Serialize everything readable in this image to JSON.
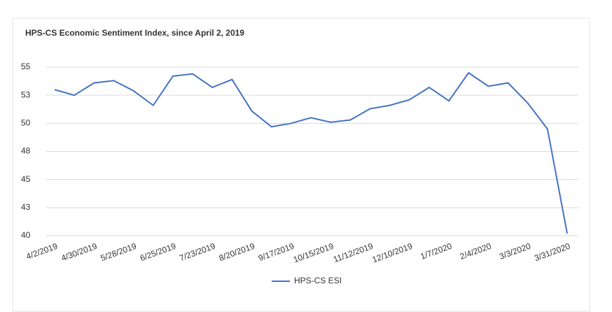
{
  "chart_data": {
    "type": "line",
    "title": "HPS-CS Economic Sentiment Index, since April 2, 2019",
    "categories": [
      "4/2/2019",
      null,
      "4/30/2019",
      null,
      "5/28/2019",
      null,
      "6/25/2019",
      null,
      "7/23/2019",
      null,
      "8/20/2019",
      null,
      "9/17/2019",
      null,
      "10/15/2019",
      null,
      "11/12/2019",
      null,
      "12/10/2019",
      null,
      "1/7/2020",
      null,
      "2/4/2020",
      null,
      "3/3/2020",
      null,
      "3/31/2020"
    ],
    "series": [
      {
        "name": "HPS-CS ESI",
        "color": "#4472c4",
        "values": [
          53.0,
          52.5,
          53.6,
          53.8,
          52.9,
          51.6,
          54.2,
          54.4,
          53.2,
          53.9,
          51.1,
          49.7,
          50.0,
          50.5,
          50.1,
          50.3,
          51.3,
          51.6,
          52.1,
          53.2,
          52.0,
          54.5,
          53.3,
          53.6,
          51.8,
          49.5,
          40.2
        ]
      }
    ],
    "ylim": [
      40,
      55
    ],
    "yticks": [
      40,
      {
        "value": 42.5,
        "label": "43"
      },
      45,
      {
        "value": 47.5,
        "label": "48"
      },
      50,
      {
        "value": 52.5,
        "label": "53"
      },
      55
    ],
    "grid": true,
    "legend": "bottom"
  }
}
